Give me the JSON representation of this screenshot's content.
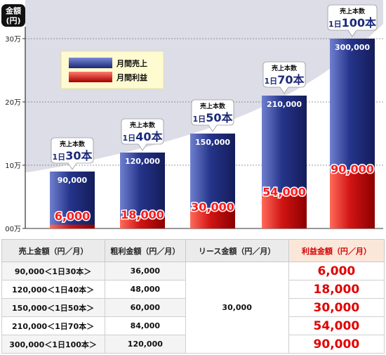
{
  "chart_data": {
    "type": "bar",
    "y_axis_unit_line1": "金額",
    "y_axis_unit_line2": "(円)",
    "y_ticks": [
      "00万",
      "10万",
      "20万",
      "30万"
    ],
    "y_tick_values": [
      0,
      100000,
      200000,
      300000
    ],
    "ylim": [
      0,
      325000
    ],
    "grid": true,
    "legend_position": "top-left",
    "series": [
      {
        "name": "月間売上",
        "color": "#2b3a8f",
        "values": [
          90000,
          120000,
          150000,
          210000,
          300000
        ],
        "labels": [
          "90,000",
          "120,000",
          "150,000",
          "210,000",
          "300,000"
        ]
      },
      {
        "name": "月間利益",
        "color": "#d71a1a",
        "values": [
          6000,
          18000,
          30000,
          54000,
          90000
        ],
        "labels": [
          "6,000",
          "18,000",
          "30,000",
          "54,000",
          "90,000"
        ]
      }
    ],
    "callouts": [
      {
        "line1": "売上本数",
        "pre": "1日",
        "num": "30本"
      },
      {
        "line1": "売上本数",
        "pre": "1日",
        "num": "40本"
      },
      {
        "line1": "売上本数",
        "pre": "1日",
        "num": "50本"
      },
      {
        "line1": "売上本数",
        "pre": "1日",
        "num": "70本"
      },
      {
        "line1": "売上本数",
        "pre": "1日",
        "num": "100本"
      }
    ]
  },
  "table": {
    "headers": [
      "売上金額（円／月）",
      "粗利金額（円／月）",
      "リース金額（円／月）",
      "利益金額（円／月）"
    ],
    "rows": [
      {
        "sales": "90,000＜1日30本＞",
        "gross": "36,000",
        "profit": "6,000"
      },
      {
        "sales": "120,000＜1日40本＞",
        "gross": "48,000",
        "profit": "18,000"
      },
      {
        "sales": "150,000＜1日50本＞",
        "gross": "60,000",
        "profit": "30,000"
      },
      {
        "sales": "210,000＜1日70本＞",
        "gross": "84,000",
        "profit": "54,000"
      },
      {
        "sales": "300,000＜1日100本＞",
        "gross": "120,000",
        "profit": "90,000"
      }
    ],
    "lease": "30,000"
  }
}
